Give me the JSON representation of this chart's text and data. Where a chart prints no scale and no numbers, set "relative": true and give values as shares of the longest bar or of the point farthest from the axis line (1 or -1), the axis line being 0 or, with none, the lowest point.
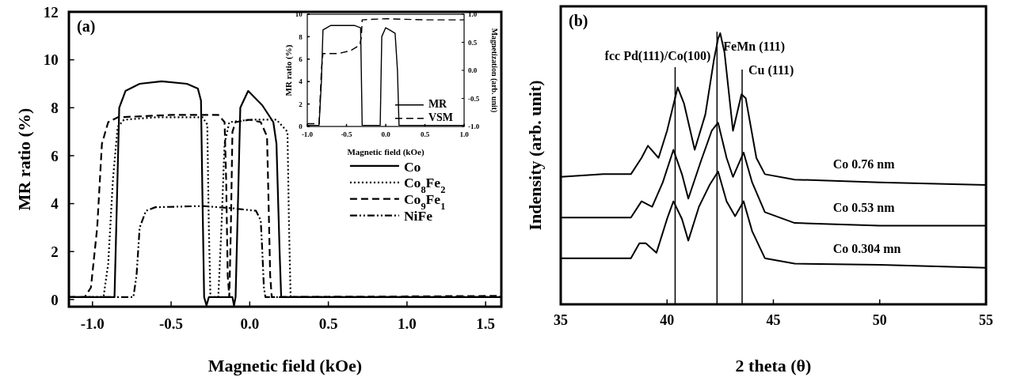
{
  "chart_data": [
    {
      "type": "line",
      "xlabel": "Magnetic field (kOe)",
      "ylabel": "MR ratio (%)",
      "xlim": [
        -1.15,
        1.6
      ],
      "ylim": [
        -0.3,
        12
      ],
      "xticks": [
        {
          "value": -1,
          "label": "-1.0"
        },
        {
          "value": -0.5,
          "label": "-0.5"
        },
        {
          "value": 0,
          "label": "0.0"
        },
        {
          "value": 0.5,
          "label": "0.5"
        },
        {
          "value": 1,
          "label": "1.0"
        },
        {
          "value": 1.5,
          "label": "1.5"
        }
      ],
      "yticks": [
        0,
        2,
        4,
        6,
        8,
        10,
        12
      ],
      "legend": "right",
      "annotations": [
        "(a)"
      ],
      "series": [
        {
          "name": "Co",
          "color": "#000000",
          "line_style": "solid",
          "x": [
            -1.15,
            -0.86,
            -0.845,
            -0.83,
            -0.79,
            -0.7,
            -0.56,
            -0.4,
            -0.33,
            -0.31,
            -0.3,
            -0.29,
            -0.275,
            -0.26,
            -0.11,
            -0.1,
            -0.09,
            -0.075,
            -0.06,
            -0.01,
            0.08,
            0.15,
            0.17,
            0.19,
            0.2,
            1.6
          ],
          "values": [
            0.1,
            0.1,
            4,
            8,
            8.7,
            9.0,
            9.1,
            9.0,
            8.8,
            8.3,
            4,
            0.1,
            -0.25,
            0.1,
            0.1,
            -0.25,
            0.1,
            4,
            8,
            8.7,
            8.1,
            7.4,
            6.5,
            2,
            0.1,
            0.1
          ]
        },
        {
          "name": "Co$_{8}$Fe$_{2}$",
          "color": "#000000",
          "line_style": "dotted",
          "x": [
            -1.15,
            -0.93,
            -0.9,
            -0.87,
            -0.84,
            -0.8,
            -0.6,
            -0.3,
            -0.27,
            -0.26,
            -0.25,
            -0.2,
            -0.18,
            -0.16,
            -0.13,
            0.0,
            0.17,
            0.24,
            0.25,
            0.26,
            1.6
          ],
          "values": [
            0.1,
            0.1,
            1.5,
            5,
            7.2,
            7.5,
            7.6,
            7.6,
            7.3,
            3,
            0.1,
            0.1,
            3,
            6.5,
            7.4,
            7.5,
            7.5,
            7.0,
            3,
            0.1,
            0.1
          ]
        },
        {
          "name": "Co$_{9}$Fe$_{1}$",
          "color": "#000000",
          "line_style": "dashed",
          "x": [
            -1.15,
            -1.05,
            -1.01,
            -0.97,
            -0.94,
            -0.9,
            -0.84,
            -0.5,
            -0.2,
            -0.16,
            -0.15,
            -0.14,
            -0.13,
            -0.12,
            -0.11,
            -0.09,
            0.0,
            0.07,
            0.11,
            0.12,
            0.13,
            0.14,
            1.6
          ],
          "values": [
            0.1,
            0.1,
            0.5,
            3,
            6.5,
            7.4,
            7.6,
            7.7,
            7.7,
            7.4,
            5,
            1,
            0.1,
            3,
            7.0,
            7.4,
            7.5,
            7.4,
            6.8,
            4,
            1,
            0.1,
            0.15
          ]
        },
        {
          "name": "NiFe",
          "color": "#000000",
          "line_style": "dashdot",
          "x": [
            -1.15,
            -0.74,
            -0.72,
            -0.7,
            -0.66,
            -0.6,
            -0.3,
            -0.1,
            0.04,
            0.07,
            0.08,
            0.09,
            0.1,
            1.6
          ],
          "values": [
            0.1,
            0.1,
            1,
            3,
            3.7,
            3.85,
            3.9,
            3.8,
            3.7,
            3.3,
            2,
            0.5,
            0.1,
            0.1
          ]
        }
      ]
    },
    {
      "type": "line",
      "xlabel": "Magnetic field (kOe)",
      "ylabel": "MR ratio (%)",
      "y2label": "Magnetization (arb. unit)",
      "xlim": [
        -1,
        1
      ],
      "ylim": [
        0,
        10
      ],
      "y2lim": [
        -1,
        1
      ],
      "xticks": [
        {
          "value": -1,
          "label": "-1.0"
        },
        {
          "value": -0.5,
          "label": "-0.5"
        },
        {
          "value": 0,
          "label": "0.0"
        },
        {
          "value": 0.5,
          "label": "0.5"
        },
        {
          "value": 1,
          "label": "1.0"
        }
      ],
      "yticks": [
        0,
        2,
        4,
        6,
        8,
        10
      ],
      "y2ticks": [
        {
          "value": -1,
          "label": "-1.0"
        },
        {
          "value": -0.5,
          "label": "-0.5"
        },
        {
          "value": 0,
          "label": "0.0"
        },
        {
          "value": 0.5,
          "label": "0.5"
        },
        {
          "value": 1,
          "label": "1.0"
        }
      ],
      "legend": "bottom right",
      "series": [
        {
          "name": "MR",
          "color": "#000000",
          "line_style": "solid",
          "x": [
            -1,
            -0.85,
            -0.82,
            -0.8,
            -0.7,
            -0.4,
            -0.32,
            -0.3,
            -0.07,
            -0.05,
            0.0,
            0.05,
            0.12,
            0.15,
            0.17,
            1
          ],
          "values": [
            0.1,
            0.1,
            4,
            8.6,
            9.0,
            9.0,
            8.8,
            0.1,
            0.1,
            8,
            8.8,
            8.6,
            8.3,
            5,
            0.1,
            0.1
          ]
        },
        {
          "name": "VSM",
          "color": "#000000",
          "line_style": "dashed",
          "axis": "y2",
          "x": [
            -1,
            -0.85,
            -0.82,
            -0.8,
            -0.6,
            -0.45,
            -0.33,
            -0.31,
            -0.3,
            0.0,
            0.5,
            1
          ],
          "values": [
            -0.95,
            -0.95,
            0,
            0.3,
            0.3,
            0.35,
            0.45,
            0.6,
            0.9,
            0.92,
            0.9,
            0.9
          ]
        }
      ]
    },
    {
      "type": "line",
      "relative": true,
      "xlabel": "2 theta (θ)",
      "ylabel": "Indensity (arb. unit)",
      "xlim": [
        35,
        55
      ],
      "xticks": [
        35,
        40,
        45,
        50,
        55
      ],
      "annotations": [
        "(b)"
      ],
      "ref_lines": [
        {
          "axis": "x",
          "value": 40.38,
          "label": "fcc Pd(111)/Co(100)"
        },
        {
          "axis": "x",
          "value": 42.35,
          "label": "FeMn (111)"
        },
        {
          "axis": "x",
          "value": 43.53,
          "label": "Cu (111)"
        }
      ],
      "series": [
        {
          "name": "Co  0.76 nm",
          "color": "#000000",
          "x": [
            35,
            37,
            38.3,
            38.8,
            39.1,
            39.6,
            40.0,
            40.5,
            40.8,
            41.3,
            41.8,
            42.2,
            42.4,
            42.5,
            42.7,
            43.1,
            43.5,
            43.7,
            44.2,
            44.6,
            46,
            50,
            55
          ],
          "values": [
            0.47,
            0.48,
            0.48,
            0.54,
            0.585,
            0.54,
            0.64,
            0.8,
            0.74,
            0.57,
            0.7,
            0.9,
            0.98,
            1.0,
            0.93,
            0.64,
            0.775,
            0.76,
            0.54,
            0.48,
            0.46,
            0.45,
            0.44
          ]
        },
        {
          "name": "Co  0.53 nm",
          "color": "#000000",
          "x": [
            35,
            38.3,
            38.8,
            39.3,
            39.8,
            40.3,
            40.7,
            41.0,
            41.6,
            42.1,
            42.4,
            42.8,
            43.1,
            43.6,
            44.0,
            44.6,
            46,
            50,
            55
          ],
          "values": [
            0.32,
            0.32,
            0.38,
            0.36,
            0.45,
            0.57,
            0.48,
            0.39,
            0.53,
            0.64,
            0.67,
            0.54,
            0.47,
            0.56,
            0.45,
            0.34,
            0.3,
            0.29,
            0.29
          ]
        },
        {
          "name": "Co  0.304 mn",
          "color": "#000000",
          "x": [
            35,
            38.3,
            38.7,
            39.0,
            39.5,
            40.0,
            40.3,
            40.7,
            41.0,
            41.5,
            42.0,
            42.4,
            42.8,
            43.2,
            43.6,
            44.0,
            44.6,
            46,
            50,
            55
          ],
          "values": [
            0.17,
            0.17,
            0.225,
            0.225,
            0.19,
            0.315,
            0.38,
            0.315,
            0.235,
            0.36,
            0.44,
            0.49,
            0.38,
            0.325,
            0.38,
            0.27,
            0.17,
            0.15,
            0.146,
            0.135
          ]
        }
      ]
    }
  ]
}
